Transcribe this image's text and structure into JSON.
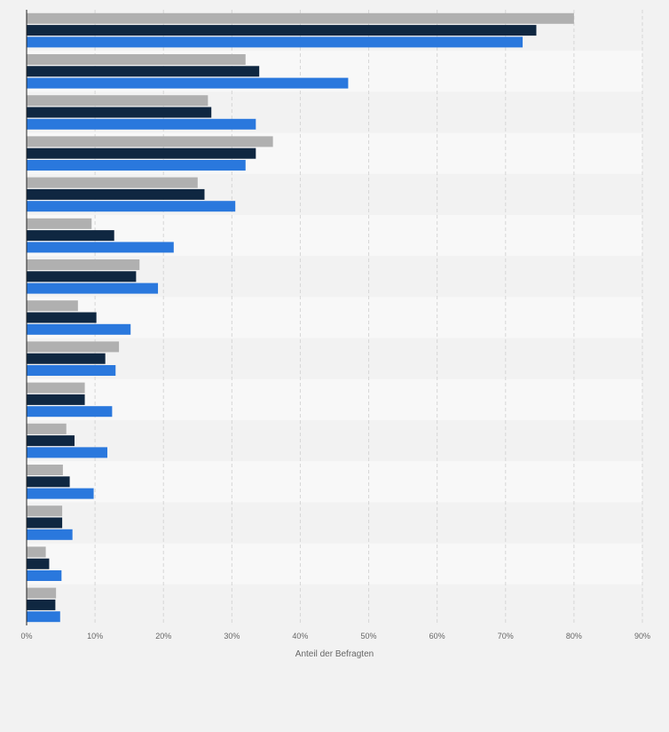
{
  "chart_data": {
    "type": "bar",
    "orientation": "horizontal",
    "categories": [
      "",
      "",
      "",
      "",
      "",
      "",
      "",
      "",
      "",
      "",
      "",
      "",
      "",
      "",
      ""
    ],
    "series": [
      {
        "color": "#b0b0b0",
        "values": [
          80,
          32,
          26.5,
          36,
          25,
          9.5,
          16.5,
          7.5,
          13.5,
          8.5,
          5.8,
          5.3,
          5.2,
          2.8,
          4.3
        ]
      },
      {
        "color": "#0f2741",
        "values": [
          74.5,
          34,
          27,
          33.5,
          26,
          12.8,
          16,
          10.2,
          11.5,
          8.5,
          7,
          6.3,
          5.2,
          3.3,
          4.2
        ]
      },
      {
        "color": "#2a78dd",
        "values": [
          72.5,
          47,
          33.5,
          32,
          30.5,
          21.5,
          19.2,
          15.2,
          13,
          12.5,
          11.8,
          9.8,
          6.7,
          5.1,
          4.9
        ]
      }
    ],
    "xlim": [
      0,
      90
    ],
    "ticks": [
      "0%",
      "10%",
      "20%",
      "30%",
      "40%",
      "50%",
      "60%",
      "70%",
      "80%",
      "90%"
    ],
    "xlabel": "Anteil der Befragten",
    "grid": true,
    "legend": "none"
  }
}
